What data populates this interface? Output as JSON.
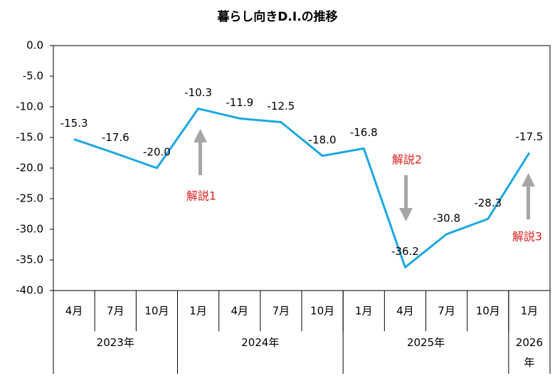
{
  "chart_data": {
    "type": "line",
    "title": "暮らし向きD.I.の推移",
    "categories": [
      "4月",
      "7月",
      "10月",
      "1月",
      "4月",
      "7月",
      "10月",
      "1月",
      "4月",
      "7月",
      "10月",
      "1月"
    ],
    "year_groups": [
      {
        "label": "2023年",
        "count": 3
      },
      {
        "label": "2024年",
        "count": 4
      },
      {
        "label": "2025年",
        "count": 4
      },
      {
        "label": "2026\n年",
        "count": 1
      }
    ],
    "series": [
      {
        "color": "#1aa7e4",
        "values": [
          -15.3,
          -17.6,
          -20.0,
          -10.3,
          -11.9,
          -12.5,
          -18.0,
          -16.8,
          -36.2,
          -30.8,
          -28.3,
          -17.5
        ],
        "value_labels": [
          "-15.3",
          "-17.6",
          "-20.0",
          "-10.3",
          "-11.9",
          "-12.5",
          "-18.0",
          "-16.8",
          "-36.2",
          "-30.8",
          "-28.3",
          "-17.5"
        ]
      }
    ],
    "ylim": [
      -40,
      0
    ],
    "yticks": [
      {
        "value": 0,
        "label": "0.0"
      },
      {
        "value": -5,
        "label": "-5.0"
      },
      {
        "value": -10,
        "label": "-10.0"
      },
      {
        "value": -15,
        "label": "-15.0"
      },
      {
        "value": -20,
        "label": "-20.0"
      },
      {
        "value": -25,
        "label": "-25.0"
      },
      {
        "value": -30,
        "label": "-30.0"
      },
      {
        "value": -35,
        "label": "-35.0"
      },
      {
        "value": -40,
        "label": "-40.0"
      }
    ],
    "annotations": [
      "解説1",
      "解説2",
      "解説3"
    ],
    "annotation_color": "#e0201c"
  }
}
